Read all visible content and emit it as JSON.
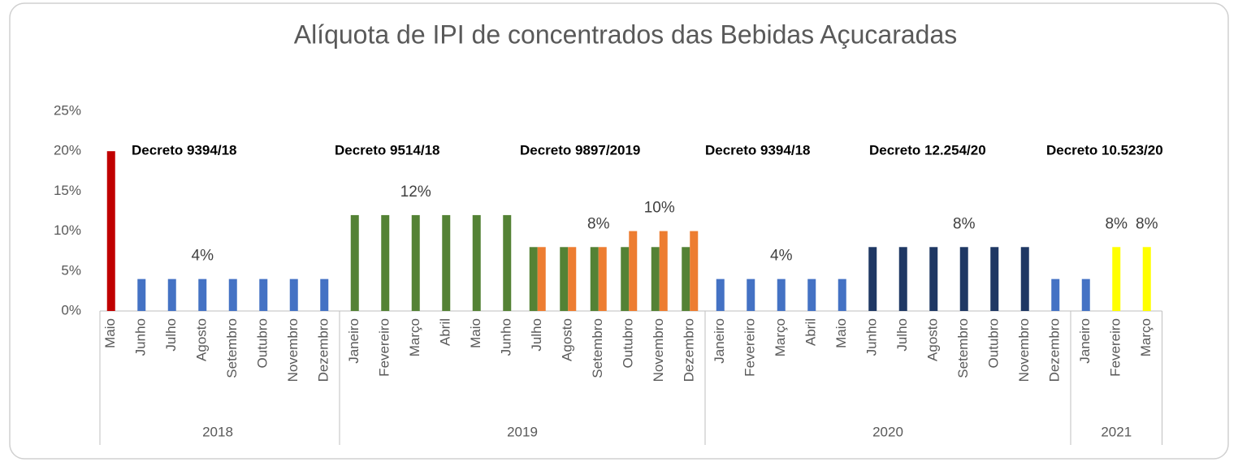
{
  "chart_data": {
    "type": "bar",
    "title": "Alíquota de IPI de concentrados das Bebidas Açucaradas",
    "categories": [
      "Maio",
      "Junho",
      "Julho",
      "Agosto",
      "Setembro",
      "Outubro",
      "Novembro",
      "Dezembro",
      "Janeiro",
      "Fevereiro",
      "Março",
      "Abril",
      "Maio",
      "Junho",
      "Julho",
      "Agosto",
      "Setembro",
      "Outubro",
      "Novembro",
      "Dezembro",
      "Janeiro",
      "Fevereiro",
      "Março",
      "Abril",
      "Maio",
      "Junho",
      "Julho",
      "Agosto",
      "Setembro",
      "Outubro",
      "Novembro",
      "Dezembro",
      "Janeiro",
      "Fevereiro",
      "Março"
    ],
    "groups": [
      {
        "label": "2018",
        "span": 8
      },
      {
        "label": "2019",
        "span": 12
      },
      {
        "label": "2020",
        "span": 12
      },
      {
        "label": "2021",
        "span": 3
      }
    ],
    "series": [
      {
        "values": [
          20,
          4,
          4,
          4,
          4,
          4,
          4,
          4,
          12,
          12,
          12,
          12,
          12,
          12,
          8,
          8,
          8,
          8,
          8,
          8,
          4,
          4,
          4,
          4,
          4,
          8,
          8,
          8,
          8,
          8,
          8,
          4,
          4,
          8,
          8
        ],
        "colors": [
          "#c00000",
          "#4472c4",
          "#4472c4",
          "#4472c4",
          "#4472c4",
          "#4472c4",
          "#4472c4",
          "#4472c4",
          "#548235",
          "#548235",
          "#548235",
          "#548235",
          "#548235",
          "#548235",
          "#548235",
          "#548235",
          "#548235",
          "#548235",
          "#548235",
          "#548235",
          "#4472c4",
          "#4472c4",
          "#4472c4",
          "#4472c4",
          "#4472c4",
          "#1f3864",
          "#1f3864",
          "#1f3864",
          "#1f3864",
          "#1f3864",
          "#1f3864",
          "#4472c4",
          "#4472c4",
          "#ffff00",
          "#ffff00"
        ],
        "value_labels": [
          null,
          null,
          null,
          "4%",
          null,
          null,
          null,
          null,
          null,
          null,
          "12%",
          null,
          null,
          null,
          null,
          null,
          "8%",
          null,
          null,
          null,
          null,
          null,
          "4%",
          null,
          null,
          null,
          null,
          null,
          "8%",
          null,
          null,
          null,
          null,
          "8%",
          "8%"
        ]
      },
      {
        "values": [
          null,
          null,
          null,
          null,
          null,
          null,
          null,
          null,
          null,
          null,
          null,
          null,
          null,
          null,
          8,
          8,
          8,
          10,
          10,
          10,
          null,
          null,
          null,
          null,
          null,
          null,
          null,
          null,
          null,
          null,
          null,
          null,
          null,
          null,
          null
        ],
        "color": "#ed7d31",
        "value_labels": [
          null,
          null,
          null,
          null,
          null,
          null,
          null,
          null,
          null,
          null,
          null,
          null,
          null,
          null,
          null,
          null,
          null,
          null,
          "10%",
          null,
          null,
          null,
          null,
          null,
          null,
          null,
          null,
          null,
          null,
          null,
          null,
          null,
          null,
          null,
          null
        ]
      }
    ],
    "annotations": [
      "Decreto 9394/18",
      "Decreto 9514/18",
      "Decreto 9897/2019",
      "Decreto 9394/18",
      "Decreto 12.254/20",
      "Decreto 10.523/20"
    ],
    "ylim": [
      0,
      25
    ],
    "yticks": [
      {
        "value": 0,
        "label": "0%"
      },
      {
        "value": 5,
        "label": "5%"
      },
      {
        "value": 10,
        "label": "10%"
      },
      {
        "value": 15,
        "label": "15%"
      },
      {
        "value": 20,
        "label": "20%"
      },
      {
        "value": 25,
        "label": "25%"
      }
    ],
    "grid": false
  }
}
